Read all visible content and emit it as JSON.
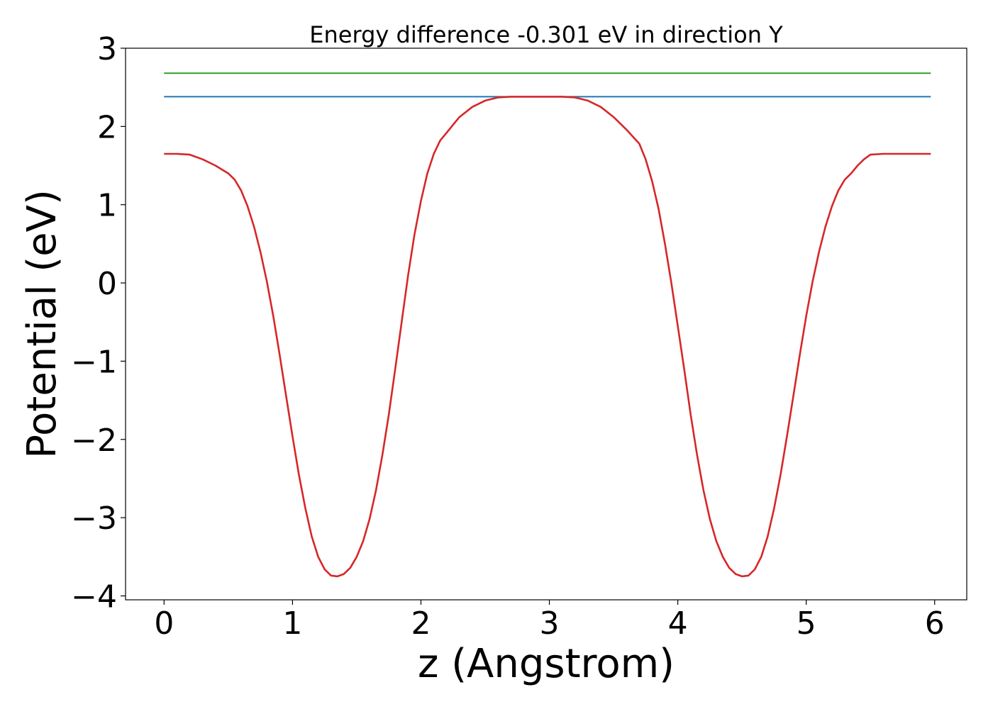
{
  "chart_data": {
    "type": "line",
    "title": "Energy difference -0.301 eV in direction Y",
    "xlabel": "z (Angstrom)",
    "ylabel": "Potential (eV)",
    "xlim": [
      -0.3,
      6.25
    ],
    "ylim": [
      -4.05,
      3.0
    ],
    "xticks": [
      0,
      1,
      2,
      3,
      4,
      5,
      6
    ],
    "xtick_labels": [
      "0",
      "1",
      "2",
      "3",
      "4",
      "5",
      "6"
    ],
    "yticks": [
      3,
      2,
      1,
      0,
      -1,
      -2,
      -3,
      -4
    ],
    "ytick_labels": [
      "3",
      "2",
      "1",
      "0",
      "−1",
      "−2",
      "−3",
      "−4"
    ],
    "grid": false,
    "legend": "none",
    "series": [
      {
        "color": "#2ca02c",
        "x": [
          0,
          5.97
        ],
        "y": [
          2.68,
          2.68
        ]
      },
      {
        "color": "#1f77b4",
        "x": [
          0,
          5.97
        ],
        "y": [
          2.38,
          2.38
        ]
      },
      {
        "color": "#d62728",
        "x": [
          0,
          0.1,
          0.2,
          0.3,
          0.4,
          0.5,
          0.55,
          0.6,
          0.65,
          0.7,
          0.75,
          0.8,
          0.85,
          0.9,
          0.95,
          1.0,
          1.05,
          1.1,
          1.15,
          1.2,
          1.25,
          1.3,
          1.35,
          1.4,
          1.45,
          1.5,
          1.55,
          1.6,
          1.65,
          1.7,
          1.75,
          1.8,
          1.85,
          1.9,
          1.95,
          2.0,
          2.05,
          2.1,
          2.15,
          2.2,
          2.25,
          2.3,
          2.4,
          2.5,
          2.6,
          2.7,
          2.8,
          2.9,
          3.0,
          3.1,
          3.2,
          3.3,
          3.4,
          3.5,
          3.6,
          3.7,
          3.75,
          3.8,
          3.85,
          3.9,
          3.95,
          4.0,
          4.05,
          4.1,
          4.15,
          4.2,
          4.25,
          4.3,
          4.35,
          4.4,
          4.45,
          4.5,
          4.55,
          4.6,
          4.65,
          4.7,
          4.75,
          4.8,
          4.85,
          4.9,
          4.95,
          5.0,
          5.05,
          5.1,
          5.15,
          5.2,
          5.25,
          5.3,
          5.35,
          5.4,
          5.45,
          5.5,
          5.6,
          5.7,
          5.8,
          5.9,
          5.97
        ],
        "y": [
          1.65,
          1.65,
          1.64,
          1.58,
          1.5,
          1.4,
          1.32,
          1.18,
          0.98,
          0.72,
          0.4,
          0.02,
          -0.42,
          -0.92,
          -1.44,
          -1.96,
          -2.45,
          -2.88,
          -3.24,
          -3.5,
          -3.66,
          -3.74,
          -3.75,
          -3.72,
          -3.64,
          -3.5,
          -3.3,
          -3.02,
          -2.65,
          -2.2,
          -1.68,
          -1.1,
          -0.5,
          0.1,
          0.62,
          1.05,
          1.4,
          1.65,
          1.82,
          1.92,
          2.02,
          2.12,
          2.25,
          2.33,
          2.37,
          2.38,
          2.38,
          2.38,
          2.38,
          2.38,
          2.37,
          2.33,
          2.25,
          2.12,
          1.96,
          1.78,
          1.58,
          1.3,
          0.95,
          0.5,
          0.0,
          -0.55,
          -1.1,
          -1.68,
          -2.2,
          -2.65,
          -3.02,
          -3.3,
          -3.5,
          -3.64,
          -3.72,
          -3.75,
          -3.74,
          -3.66,
          -3.5,
          -3.24,
          -2.88,
          -2.45,
          -1.96,
          -1.44,
          -0.92,
          -0.42,
          0.02,
          0.4,
          0.72,
          0.98,
          1.18,
          1.32,
          1.4,
          1.5,
          1.58,
          1.64,
          1.65,
          1.65,
          1.65,
          1.65,
          1.65
        ]
      }
    ]
  }
}
